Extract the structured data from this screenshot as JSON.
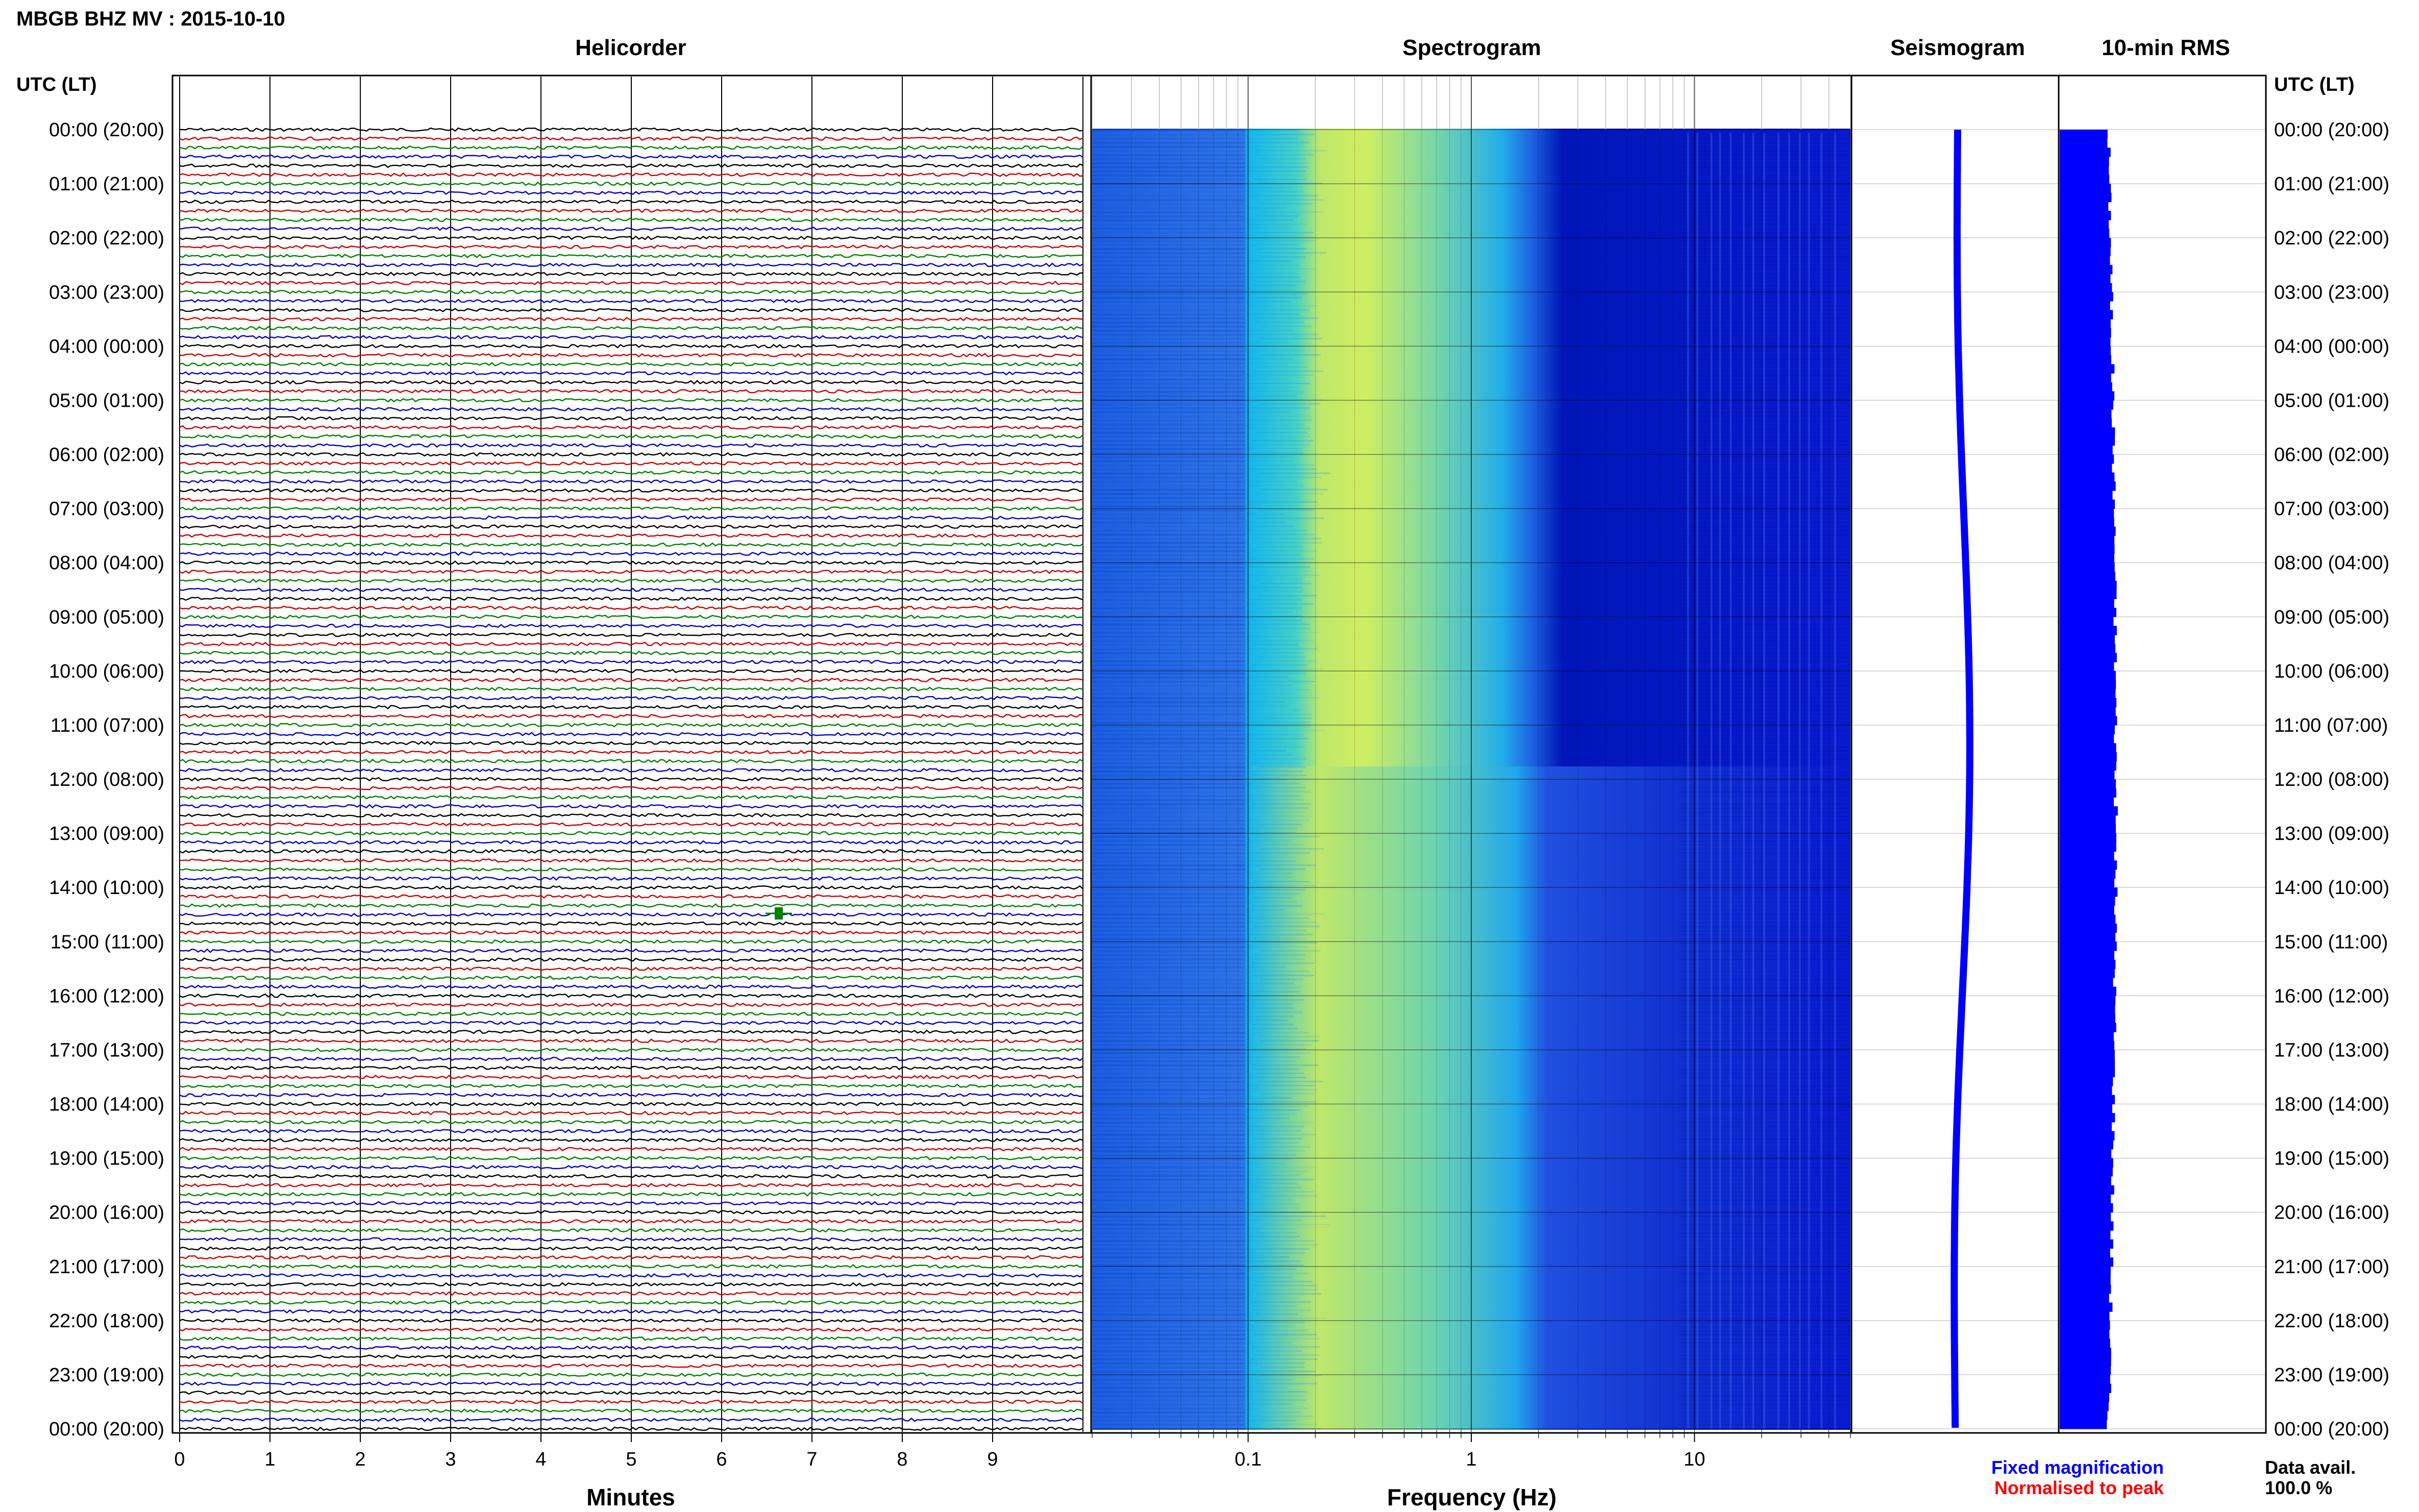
{
  "header": {
    "title": "MBGB BHZ MV : 2015-10-10",
    "utc_label_left": "UTC (LT)",
    "utc_label_right": "UTC (LT)"
  },
  "panels": {
    "helicorder_title": "Helicorder",
    "spectrogram_title": "Spectrogram",
    "seismogram_title": "Seismogram",
    "rms_title": "10-min RMS"
  },
  "axes": {
    "minutes_label": "Minutes",
    "frequency_label": "Frequency (Hz)",
    "minute_ticks": [
      "0",
      "1",
      "2",
      "3",
      "4",
      "5",
      "6",
      "7",
      "8",
      "9"
    ],
    "frequency_ticks": [
      "0.1",
      "1",
      "10"
    ]
  },
  "time_labels": [
    "00:00 (20:00)",
    "01:00 (21:00)",
    "02:00 (22:00)",
    "03:00 (23:00)",
    "04:00 (00:00)",
    "05:00 (01:00)",
    "06:00 (02:00)",
    "07:00 (03:00)",
    "08:00 (04:00)",
    "09:00 (05:00)",
    "10:00 (06:00)",
    "11:00 (07:00)",
    "12:00 (08:00)",
    "13:00 (09:00)",
    "14:00 (10:00)",
    "15:00 (11:00)",
    "16:00 (12:00)",
    "17:00 (13:00)",
    "18:00 (14:00)",
    "19:00 (15:00)",
    "20:00 (16:00)",
    "21:00 (17:00)",
    "22:00 (18:00)",
    "23:00 (19:00)",
    "00:00 (20:00)"
  ],
  "legend": {
    "fixed_magnification": "Fixed magnification",
    "normalised_to_peak": "Normalised to peak",
    "data_avail_label": "Data avail.",
    "data_avail_value": "100.0 %"
  },
  "colors": {
    "trace_cycle": [
      "#000000",
      "#cc0000",
      "#008000",
      "#0000cc"
    ],
    "fixed_magnification": "#0000ff",
    "normalised_to_peak": "#ff0000",
    "seismogram": "#0000ff",
    "rms_bar": "#0000ff",
    "spectrogram_dark": "#0000a8",
    "spectrogram_mid": "#00b8f0",
    "spectrogram_peak": "#d8f060"
  },
  "chart_data": {
    "type": "heatmap",
    "title": "MBGB BHZ MV : 2015-10-10",
    "helicorder": {
      "xlabel": "Minutes",
      "xlim": [
        0,
        10
      ],
      "trace_interval_minutes": 10,
      "traces_per_hour": 6,
      "hours": 24
    },
    "spectrogram": {
      "xlabel": "Frequency (Hz)",
      "xscale": "log",
      "xlim": [
        0.02,
        50
      ],
      "dominant_band_hz": [
        0.2,
        1.0
      ]
    },
    "time_axis": {
      "label": "UTC (LT)",
      "start": "00:00",
      "end": "00:00",
      "local_offset_hours": -4
    },
    "data_availability_percent": 100.0
  }
}
